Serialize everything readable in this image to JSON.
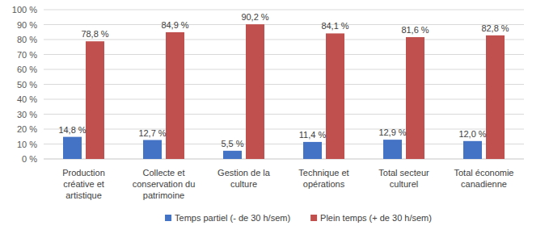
{
  "chart_data": {
    "type": "bar",
    "categories": [
      "Production créative et artistique",
      "Collecte et conservation du patrimoine",
      "Gestion de la culture",
      "Technique et opérations",
      "Total secteur culturel",
      "Total économie canadienne"
    ],
    "series": [
      {
        "name": "Temps partiel (- de 30 h/sem)",
        "color": "#4472c4",
        "values": [
          14.8,
          12.7,
          5.5,
          11.4,
          12.9,
          12.0
        ],
        "value_labels": [
          "14,8 %",
          "12,7 %",
          "5,5 %",
          "11,4 %",
          "12,9 %",
          "12,0 %"
        ]
      },
      {
        "name": "Plein temps (+ de 30 h/sem)",
        "color": "#c0504d",
        "values": [
          78.8,
          84.9,
          90.2,
          84.1,
          81.6,
          82.8
        ],
        "value_labels": [
          "78,8 %",
          "84,9 %",
          "90,2 %",
          "84,1 %",
          "81,6 %",
          "82,8 %"
        ]
      }
    ],
    "ylim": [
      0,
      100
    ],
    "yticks": [
      {
        "value": 0,
        "label": "0 %"
      },
      {
        "value": 10,
        "label": "10 %"
      },
      {
        "value": 20,
        "label": "20 %"
      },
      {
        "value": 30,
        "label": "30 %"
      },
      {
        "value": 40,
        "label": "40 %"
      },
      {
        "value": 50,
        "label": "50 %"
      },
      {
        "value": 60,
        "label": "60 %"
      },
      {
        "value": 70,
        "label": "70 %"
      },
      {
        "value": 80,
        "label": "80 %"
      },
      {
        "value": 90,
        "label": "90 %"
      },
      {
        "value": 100,
        "label": "100 %"
      }
    ],
    "grid": true,
    "data_labels": true,
    "legend": "bottom"
  }
}
